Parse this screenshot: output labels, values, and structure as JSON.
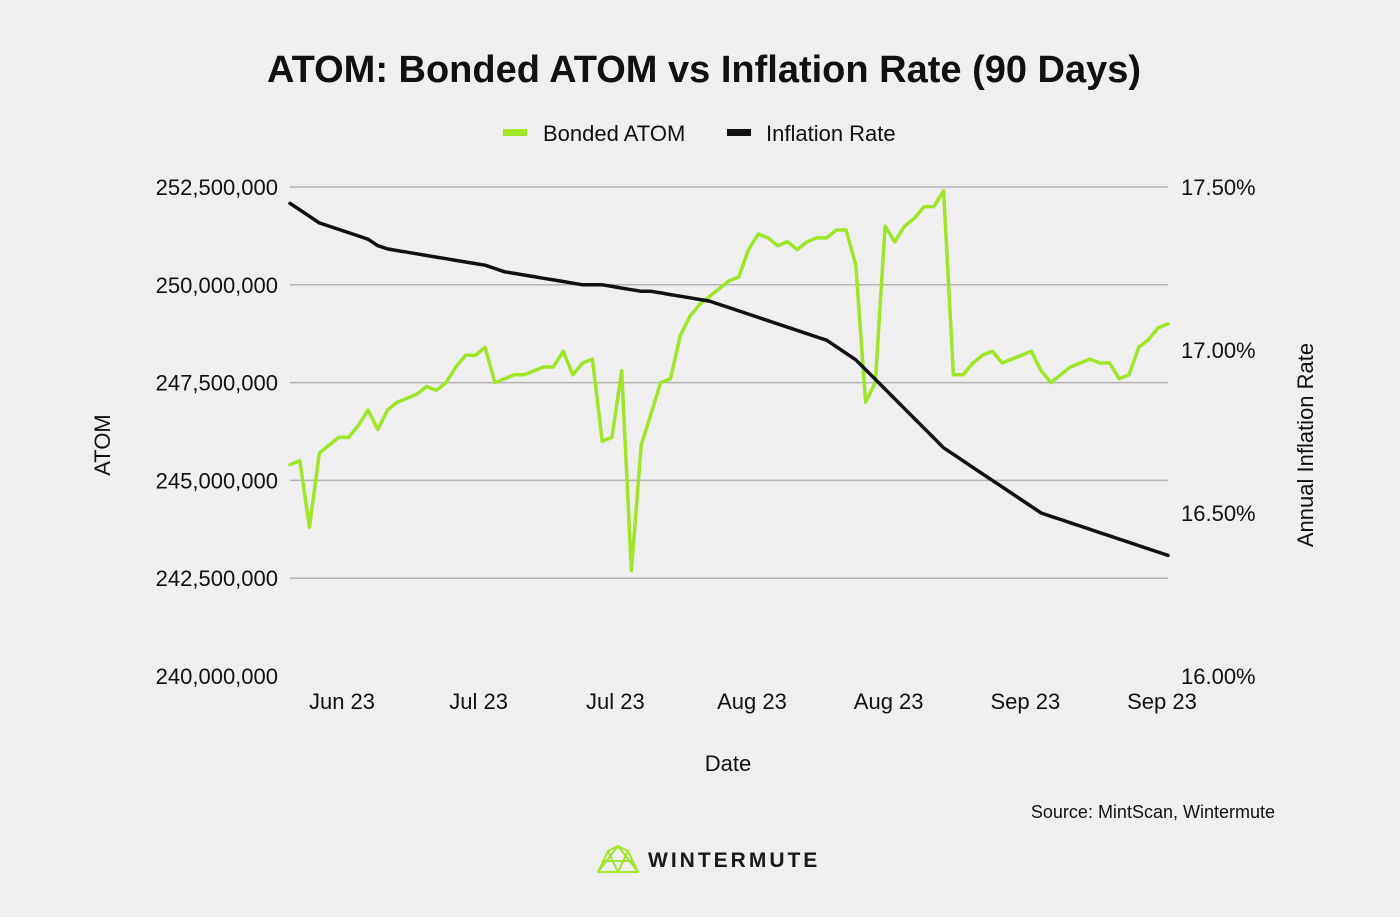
{
  "chart_data": {
    "type": "line",
    "title": "ATOM: Bonded ATOM vs Inflation Rate (90 Days)",
    "xlabel": "Date",
    "ylabel_left": "ATOM",
    "ylabel_right": "Annual Inflation Rate",
    "x_tick_labels": [
      "Jun 23",
      "Jul 23",
      "Jul 23",
      "Aug 23",
      "Aug 23",
      "Sep 23",
      "Sep 23"
    ],
    "y_left_ticks": [
      "240,000,000",
      "242,500,000",
      "245,000,000",
      "247,500,000",
      "250,000,000",
      "252,500,000"
    ],
    "y_left_range": [
      240000000,
      252500000
    ],
    "y_right_ticks": [
      "16.00%",
      "16.50%",
      "17.00%",
      "17.50%"
    ],
    "y_right_range": [
      16.0,
      17.5
    ],
    "grid": true,
    "legend_position": "top-center",
    "series": [
      {
        "name": "Bonded ATOM",
        "axis": "left",
        "color": "#9fe629",
        "values": [
          245400000,
          245500000,
          243800000,
          245700000,
          245900000,
          246100000,
          246100000,
          246400000,
          246800000,
          246300000,
          246800000,
          247000000,
          247100000,
          247200000,
          247400000,
          247300000,
          247500000,
          247900000,
          248200000,
          248200000,
          248400000,
          247500000,
          247600000,
          247700000,
          247700000,
          247800000,
          247900000,
          247900000,
          248300000,
          247700000,
          248000000,
          248100000,
          246000000,
          246100000,
          247800000,
          242700000,
          245900000,
          246700000,
          247500000,
          247600000,
          248700000,
          249200000,
          249500000,
          249700000,
          249900000,
          250100000,
          250200000,
          250900000,
          251300000,
          251200000,
          251000000,
          251100000,
          250900000,
          251100000,
          251200000,
          251200000,
          251400000,
          251400000,
          250500000,
          247000000,
          247500000,
          251500000,
          251100000,
          251500000,
          251700000,
          252000000,
          252000000,
          252400000,
          247700000,
          247700000,
          248000000,
          248200000,
          248300000,
          248000000,
          248100000,
          248200000,
          248300000,
          247800000,
          247500000,
          247700000,
          247900000,
          248000000,
          248100000,
          248000000,
          248000000,
          247600000,
          247700000,
          248400000,
          248600000,
          248900000,
          249000000
        ]
      },
      {
        "name": "Inflation Rate",
        "axis": "right",
        "color": "#111111",
        "values": [
          17.45,
          17.43,
          17.41,
          17.39,
          17.38,
          17.37,
          17.36,
          17.35,
          17.34,
          17.32,
          17.31,
          17.305,
          17.3,
          17.295,
          17.29,
          17.285,
          17.28,
          17.275,
          17.27,
          17.265,
          17.26,
          17.25,
          17.24,
          17.235,
          17.23,
          17.225,
          17.22,
          17.215,
          17.21,
          17.205,
          17.2,
          17.2,
          17.2,
          17.195,
          17.19,
          17.185,
          17.18,
          17.18,
          17.175,
          17.17,
          17.165,
          17.16,
          17.155,
          17.15,
          17.14,
          17.13,
          17.12,
          17.11,
          17.1,
          17.09,
          17.08,
          17.07,
          17.06,
          17.05,
          17.04,
          17.03,
          17.01,
          16.99,
          16.97,
          16.94,
          16.91,
          16.88,
          16.85,
          16.82,
          16.79,
          16.76,
          16.73,
          16.7,
          16.68,
          16.66,
          16.64,
          16.62,
          16.6,
          16.58,
          16.56,
          16.54,
          16.52,
          16.5,
          16.49,
          16.48,
          16.47,
          16.46,
          16.45,
          16.44,
          16.43,
          16.42,
          16.41,
          16.4,
          16.39,
          16.38,
          16.37
        ]
      }
    ],
    "source": "Source: MintScan, Wintermute"
  },
  "brand": {
    "name": "WINTERMUTE",
    "logo_icon": "wintermute-logo-icon",
    "logo_color": "#9fe629"
  }
}
